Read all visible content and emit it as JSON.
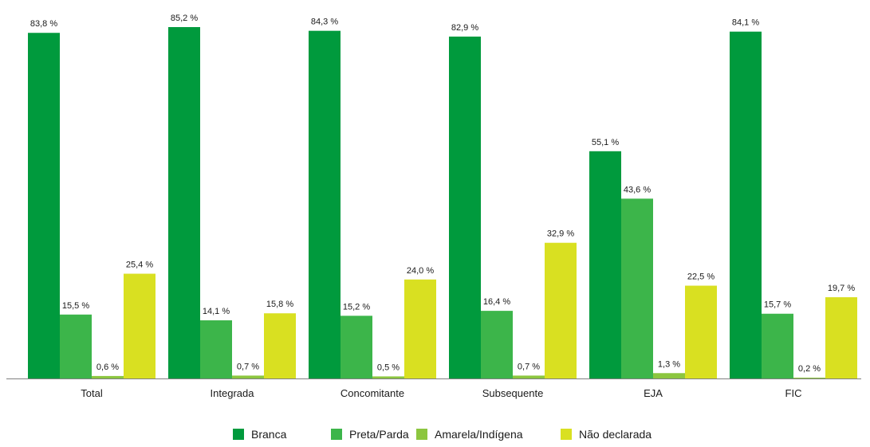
{
  "chart_data": {
    "type": "bar",
    "title": "",
    "xlabel": "",
    "ylabel": "",
    "ylim": [
      0,
      85.2
    ],
    "grid": false,
    "legend_position": "bottom",
    "value_suffix": " %",
    "categories": [
      "Total",
      "Integrada",
      "Concomitante",
      "Subsequente",
      "EJA",
      "FIC"
    ],
    "series": [
      {
        "name": "Branca",
        "color": "#009a3d",
        "values": [
          83.8,
          85.2,
          84.3,
          82.9,
          55.1,
          84.1
        ],
        "labels": [
          "83,8 %",
          "85,2 %",
          "84,3 %",
          "82,9 %",
          "55,1 %",
          "84,1 %"
        ]
      },
      {
        "name": "Preta/Parda",
        "color": "#3cb54a",
        "values": [
          15.5,
          14.1,
          15.2,
          16.4,
          43.6,
          15.7
        ],
        "labels": [
          "15,5 %",
          "14,1 %",
          "15,2 %",
          "16,4 %",
          "43,6 %",
          "15,7 %"
        ]
      },
      {
        "name": "Amarela/Indígena",
        "color": "#8cc63f",
        "values": [
          0.6,
          0.7,
          0.5,
          0.7,
          1.3,
          0.2
        ],
        "labels": [
          "0,6 %",
          "0,7 %",
          "0,5 %",
          "0,7 %",
          "1,3 %",
          "0,2 %"
        ]
      },
      {
        "name": "Não declarada",
        "color": "#d9e021",
        "values": [
          25.4,
          15.8,
          24.0,
          32.9,
          22.5,
          19.7
        ],
        "labels": [
          "25,4 %",
          "15,8 %",
          "24,0 %",
          "32,9 %",
          "22,5 %",
          "19,7 %"
        ]
      }
    ]
  }
}
